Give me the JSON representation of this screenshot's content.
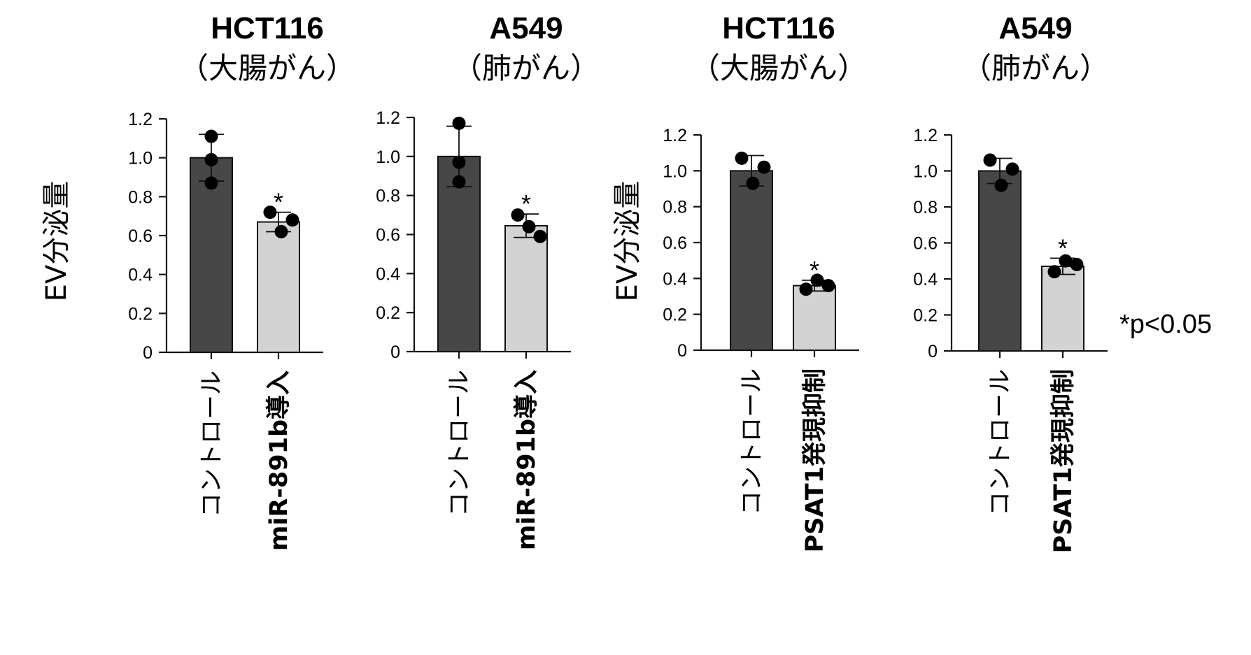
{
  "ylabel": "EV分泌量",
  "footnote": "*p<0.05",
  "colors": {
    "control": "#474747",
    "treated": "#d3d3d3",
    "outline": "#111111",
    "point": "#000000"
  },
  "chart_data": [
    {
      "type": "bar",
      "title": "HCT116",
      "subtitle": "（大腸がん）",
      "categories": [
        "コントロール",
        "miR-891b導入"
      ],
      "values": [
        1.0,
        0.67
      ],
      "errors": [
        0.12,
        0.05
      ],
      "points": [
        [
          1.11,
          0.99,
          0.87
        ],
        [
          0.72,
          0.62,
          0.68
        ]
      ],
      "significance": [
        "",
        "*"
      ],
      "ylabel": "EV分泌量",
      "ylim": [
        0,
        1.2
      ],
      "yticks": [
        "0",
        "0.2",
        "0.4",
        "0.6",
        "0.8",
        "1.0",
        "1.2"
      ]
    },
    {
      "type": "bar",
      "title": "A549",
      "subtitle": "（肺がん）",
      "categories": [
        "コントロール",
        "miR-891b導入"
      ],
      "values": [
        1.0,
        0.645
      ],
      "errors": [
        0.155,
        0.06
      ],
      "points": [
        [
          1.17,
          0.97,
          0.87
        ],
        [
          0.7,
          0.64,
          0.59
        ]
      ],
      "significance": [
        "",
        "*"
      ],
      "ylim": [
        0,
        1.2
      ],
      "yticks": [
        "0",
        "0.2",
        "0.4",
        "0.6",
        "0.8",
        "1.0",
        "1.2"
      ]
    },
    {
      "type": "bar",
      "title": "HCT116",
      "subtitle": "（大腸がん）",
      "categories": [
        "コントロール",
        "PSAT1発現抑制"
      ],
      "values": [
        1.0,
        0.36
      ],
      "errors": [
        0.085,
        0.03
      ],
      "points": [
        [
          1.07,
          0.93,
          1.02
        ],
        [
          0.34,
          0.39,
          0.36
        ]
      ],
      "significance": [
        "",
        "*"
      ],
      "ylabel": "EV分泌量",
      "ylim": [
        0,
        1.2
      ],
      "yticks": [
        "0",
        "0.2",
        "0.4",
        "0.6",
        "0.8",
        "1.0",
        "1.2"
      ]
    },
    {
      "type": "bar",
      "title": "A549",
      "subtitle": "（肺がん）",
      "categories": [
        "コントロール",
        "PSAT1発現抑制"
      ],
      "values": [
        1.0,
        0.47
      ],
      "errors": [
        0.07,
        0.045
      ],
      "points": [
        [
          1.06,
          0.92,
          1.01
        ],
        [
          0.44,
          0.5,
          0.48
        ]
      ],
      "significance": [
        "",
        "*"
      ],
      "ylim": [
        0,
        1.2
      ],
      "yticks": [
        "0",
        "0.2",
        "0.4",
        "0.6",
        "0.8",
        "1.0",
        "1.2"
      ]
    }
  ]
}
